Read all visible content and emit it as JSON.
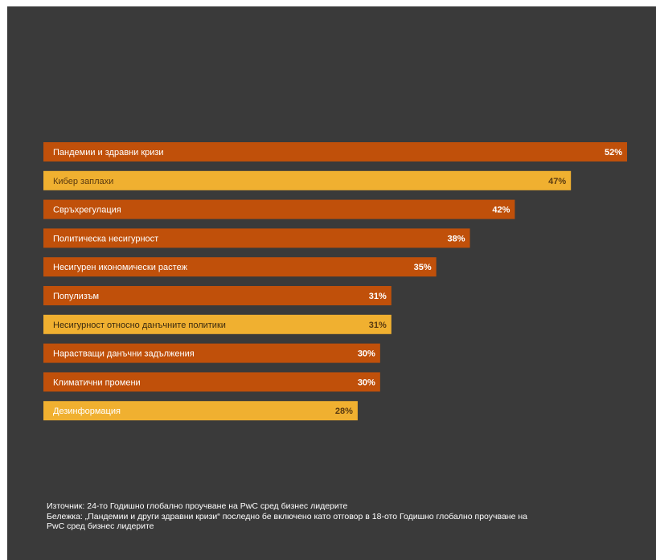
{
  "chart_data": {
    "type": "bar",
    "orientation": "horizontal",
    "title": "",
    "xlabel": "",
    "ylabel": "",
    "xlim": [
      0,
      52
    ],
    "grid": false,
    "legend": "none",
    "unit": "%",
    "categories": [
      "Пандемии и здравни кризи",
      "Кибер заплахи",
      "Свръхрегулация",
      "Политическа несигурност",
      "Несигурен икономически растеж",
      "Популизъм",
      "Несигурност относно данъчните политики",
      "Нарастващи данъчни задължения",
      "Климатични промени",
      "Дезинформация"
    ],
    "values": [
      52,
      47,
      42,
      38,
      35,
      31,
      31,
      30,
      30,
      28
    ],
    "value_labels": [
      "52%",
      "47%",
      "42%",
      "38%",
      "35%",
      "31%",
      "31%",
      "30%",
      "30%",
      "28%"
    ],
    "bar_colors": [
      "#c0500a",
      "#f0b030",
      "#c0500a",
      "#c0500a",
      "#c0500a",
      "#c0500a",
      "#f0b030",
      "#c0500a",
      "#c0500a",
      "#f0b030"
    ],
    "label_colors": [
      "#ffffff",
      "#5a3a10",
      "#ffffff",
      "#ffffff",
      "#ffffff",
      "#ffffff",
      "#3a2a10",
      "#ffffff",
      "#ffffff",
      "#ffffff"
    ],
    "value_colors": [
      "#ffffff",
      "#5a3a10",
      "#ffffff",
      "#ffffff",
      "#ffffff",
      "#ffffff",
      "#5a3a10",
      "#ffffff",
      "#ffffff",
      "#5a3a10"
    ]
  },
  "colors": {
    "background": "#3a3a3a",
    "dark_orange": "#c0500a",
    "light_orange": "#f0b030"
  },
  "notes": {
    "source": "Източник: 24-то Годишно глобално проучване на PwC сред бизнес лидерите",
    "note_line1": "Бележка: „Пандемии и други здравни кризи“ последно бе включено като отговор в 18-ото Годишно глобално проучване на",
    "note_line2": "PwC сред бизнес лидерите"
  }
}
